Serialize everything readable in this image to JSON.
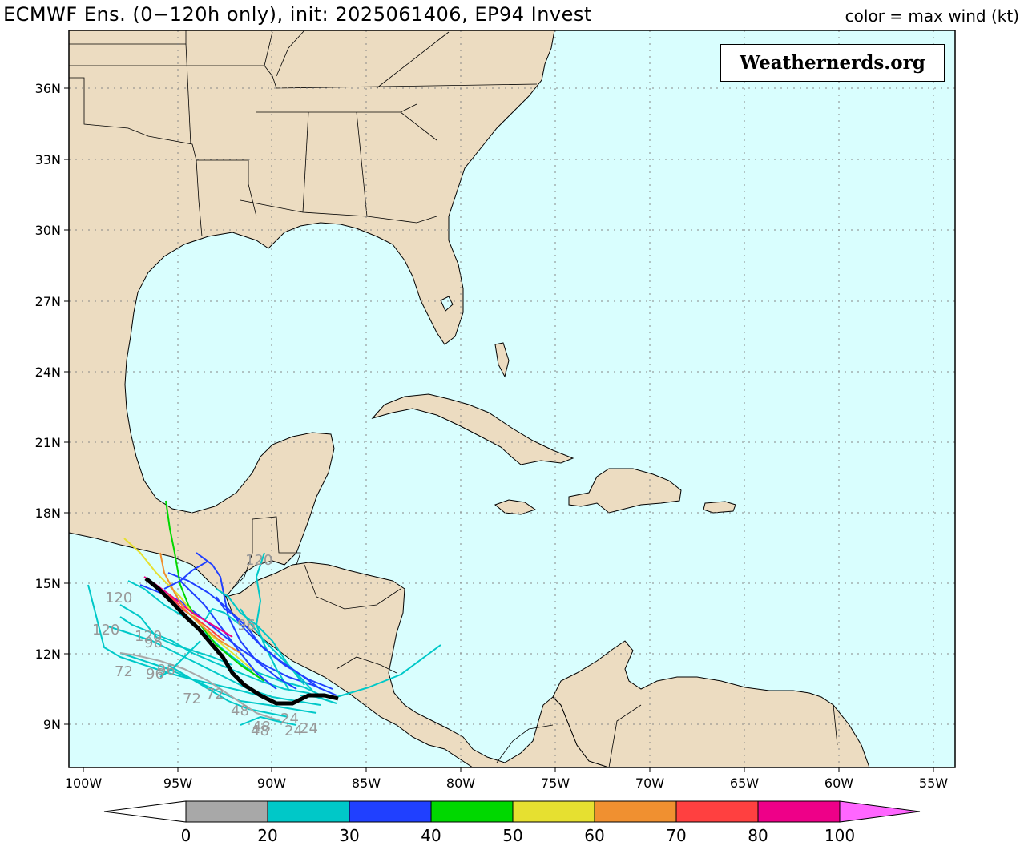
{
  "header": {
    "title": "ECMWF Ens. (0−120h only), init: 2025061406, EP94 Invest",
    "subtitle": "color = max wind (kt)"
  },
  "watermark": "Weathernerds.org",
  "map": {
    "lon_labels": [
      "100W",
      "95W",
      "90W",
      "85W",
      "80W",
      "75W",
      "70W",
      "65W",
      "60W",
      "55W"
    ],
    "lat_labels": [
      "36N",
      "33N",
      "30N",
      "27N",
      "24N",
      "21N",
      "18N",
      "15N",
      "12N",
      "9N"
    ],
    "track_hour_labels": [
      "120",
      "120",
      "120",
      "120",
      "96",
      "96",
      "96",
      "96",
      "72",
      "72",
      "72",
      "48",
      "48",
      "48",
      "24",
      "24",
      "24"
    ]
  },
  "colorbar": {
    "ticks": [
      "0",
      "20",
      "30",
      "40",
      "50",
      "60",
      "70",
      "80",
      "100"
    ],
    "colors": [
      "#a8a8a8",
      "#00c8c8",
      "#2040ff",
      "#00d800",
      "#e6e030",
      "#f09030",
      "#ff4040",
      "#ee0088"
    ],
    "extend_low_color": "#ffffff",
    "extend_high_color": "#ff66ff"
  }
}
